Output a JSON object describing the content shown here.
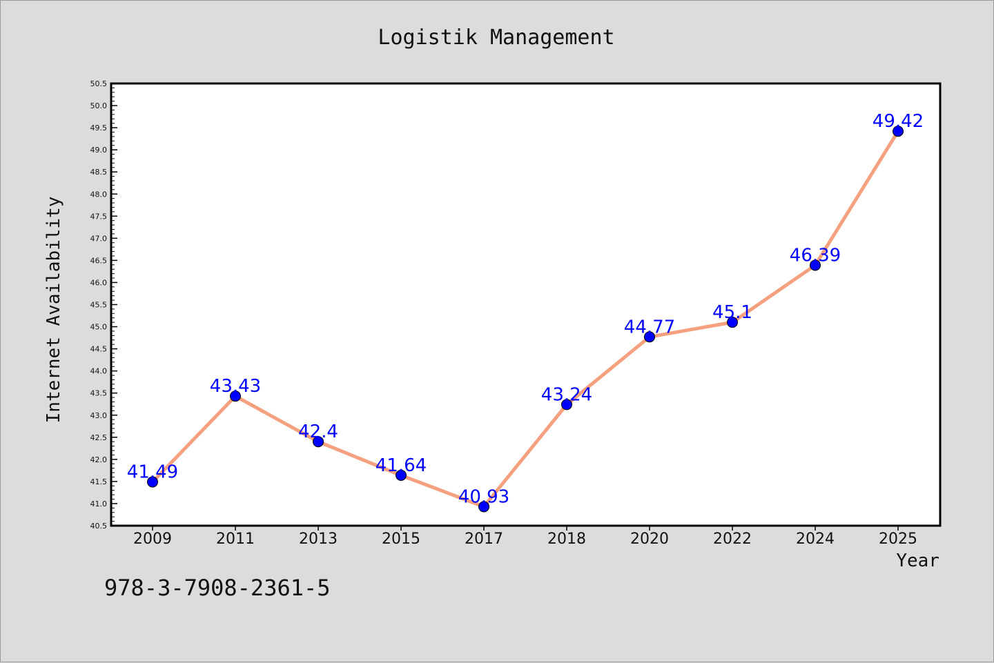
{
  "chart_data": {
    "type": "line",
    "title": "Logistik Management",
    "xlabel": "Year",
    "ylabel": "Internet Availability",
    "categories": [
      "2009",
      "2011",
      "2013",
      "2015",
      "2017",
      "2018",
      "2020",
      "2022",
      "2024",
      "2025"
    ],
    "series": [
      {
        "values": [
          41.49,
          43.43,
          42.4,
          41.64,
          40.93,
          43.24,
          44.77,
          45.1,
          46.39,
          49.42
        ],
        "labels": [
          "41.49",
          "43.43",
          "42.4",
          "41.64",
          "40.93",
          "43.24",
          "44.77",
          "45.1",
          "46.39",
          "49.42"
        ],
        "line_color": "#f5a07e",
        "marker_color": "#0000ff",
        "label_color": "#0000ff"
      }
    ],
    "ylim": [
      40.5,
      50.5
    ],
    "yticks": [
      "40.5",
      "41.0",
      "41.5",
      "42.0",
      "42.5",
      "43.0",
      "43.5",
      "44.0",
      "44.5",
      "45.0",
      "45.5",
      "46.0",
      "46.5",
      "47.0",
      "47.5",
      "48.0",
      "48.5",
      "49.0",
      "49.5",
      "50.0",
      "50.5"
    ],
    "grid": false,
    "legend": "none"
  },
  "footer": {
    "isbn": "978-3-7908-2361-5"
  }
}
